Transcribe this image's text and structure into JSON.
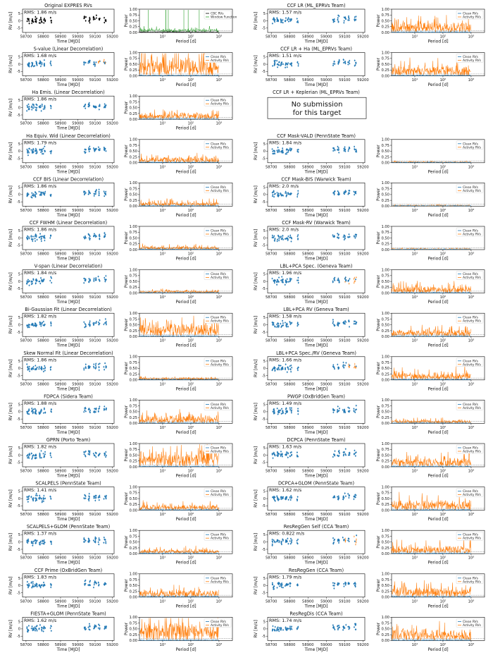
{
  "figure": {
    "rms_prefix": "RMS: ",
    "rms_unit": " m/s"
  },
  "rv_axis": {
    "ylabel": "RV [m/s]",
    "xlabel": "Time [MJD]",
    "xticks": [
      "58700",
      "58800",
      "58900",
      "59000",
      "59100",
      "59200"
    ],
    "yticks": [
      "5",
      "0",
      "-5"
    ],
    "xlim": [
      58680,
      59210
    ],
    "ylim": [
      -8,
      8
    ]
  },
  "power_axis": {
    "ylabel": "Power",
    "xlabel": "Period [d]",
    "xticks": [
      "10¹",
      "10²",
      "10³"
    ],
    "yticks": [
      "1.00",
      "0.75",
      "0.50",
      "0.25",
      "0.00"
    ],
    "xscale": "log",
    "ylim": [
      0,
      1
    ]
  },
  "legend": {
    "clean": "Clean RVs",
    "activity": "Activity RVs",
    "cbc": "CBC RVs",
    "window": "Window Function"
  },
  "colors": {
    "clean": "#1f77b4",
    "activity": "#ff7f0e",
    "cbc": "#000000",
    "window": "#2ca02c"
  },
  "no_submission": {
    "line1": "No submission",
    "line2": "for this target"
  },
  "chart_data": [
    {
      "panel": "L1",
      "type": "scatter",
      "title": "Original EXPRES RVs",
      "rms": "1.86",
      "style": "original",
      "amp": 0.2
    },
    {
      "panel": "L2",
      "type": "scatter",
      "title": "S-value (Linear Decorrelation)",
      "rms": "1.68",
      "style": "mixed",
      "amp": 0.75
    },
    {
      "panel": "L3",
      "type": "scatter",
      "title": "Ha Emis. (Linear Decorrelation)",
      "rms": "1.86",
      "style": "normal",
      "amp": 0.3
    },
    {
      "panel": "L4",
      "type": "scatter",
      "title": "Ha Equiv. Wid (Linear Decorrelation)",
      "rms": "1.79",
      "style": "normal",
      "amp": 0.25
    },
    {
      "panel": "L5",
      "type": "scatter",
      "title": "CCF BIS (Linear Decorrelation)",
      "rms": "1.86",
      "style": "normal",
      "amp": 0.2
    },
    {
      "panel": "L6",
      "type": "scatter",
      "title": "CCF FWHM (Linear Decorrelation)",
      "rms": "1.86",
      "style": "normal",
      "amp": 0.15
    },
    {
      "panel": "L7",
      "type": "scatter",
      "title": "V-span (Linear Decorrelation)",
      "rms": "1.84",
      "style": "normal",
      "amp": 0.12
    },
    {
      "panel": "L8",
      "type": "scatter",
      "title": "Bi-Gaussian Fit (Linear Decorrelation)",
      "rms": "1.82",
      "style": "normal",
      "amp": 0.6
    },
    {
      "panel": "L9",
      "type": "scatter",
      "title": "Skew Normal Fit (Linear Decorrelation)",
      "rms": "1.86",
      "style": "normal",
      "amp": 0.1
    },
    {
      "panel": "L10",
      "type": "scatter",
      "title": "FDPCA (Sidera Team)",
      "rms": "1.88",
      "style": "normal",
      "amp": 0.35
    },
    {
      "panel": "L11",
      "type": "scatter",
      "title": "GPRN (Porto Team)",
      "rms": "1.82",
      "style": "normal",
      "amp": 0.7
    },
    {
      "panel": "L12",
      "type": "scatter",
      "title": "SCALPELS (PennState Team)",
      "rms": "1.41",
      "style": "normal",
      "amp": 0.25
    },
    {
      "panel": "L13",
      "type": "scatter",
      "title": "SCALPELS+GLOM (PennState Team)",
      "rms": "1.37",
      "style": "normal",
      "amp": 0.2
    },
    {
      "panel": "L14",
      "type": "scatter",
      "title": "CCF Prime (OxBridGen Team)",
      "rms": "1.83",
      "style": "normal",
      "amp": 0.3
    },
    {
      "panel": "L15",
      "type": "scatter",
      "title": "FIESTA+GLOM (PennState Team)",
      "rms": "1.62",
      "style": "normal",
      "amp": 0.85
    },
    {
      "panel": "R1",
      "type": "scatter",
      "title": "CCF LR (ML_EPRVs Team)",
      "rms": "1.57",
      "style": "normal",
      "amp": 0.45
    },
    {
      "panel": "R2",
      "type": "scatter",
      "title": "CCF LR + Ha (ML_EPRVs Team)",
      "rms": "1.51",
      "style": "normal",
      "amp": 0.45
    },
    {
      "panel": "R3",
      "type": "none",
      "title": "CCF LR + Keplerian (ML_EPRVs Team)",
      "rms": "",
      "style": "none",
      "amp": 0
    },
    {
      "panel": "R4",
      "type": "scatter",
      "title": "CCF Mask-VALD (PennState Team)",
      "rms": "1.84",
      "style": "normal",
      "amp": 0.05
    },
    {
      "panel": "R5",
      "type": "scatter",
      "title": "CCF Mask-BIS (Warwick Team)",
      "rms": "2.0",
      "style": "normal",
      "amp": 0.05
    },
    {
      "panel": "R6",
      "type": "scatter",
      "title": "CCF Mask-RV (Warwick Team)",
      "rms": "2.0",
      "style": "normal",
      "amp": 0.05
    },
    {
      "panel": "R7",
      "type": "scatter",
      "title": "LBL+PCA Spec. (Geneva Team)",
      "rms": "1.96",
      "style": "mixed",
      "amp": 0.3
    },
    {
      "panel": "R8",
      "type": "scatter",
      "title": "LBL+PCA RV (Geneva Team)",
      "rms": "1.58",
      "style": "normal",
      "amp": 0.3
    },
    {
      "panel": "R9",
      "type": "scatter",
      "title": "LBL+PCA Spec./RV (Geneva Team)",
      "rms": "1.66",
      "style": "mixed",
      "amp": 0.35
    },
    {
      "panel": "R10",
      "type": "scatter",
      "title": "PWGP (OxBridGen Team)",
      "rms": "1.49",
      "style": "normal",
      "amp": 0.15
    },
    {
      "panel": "R11",
      "type": "scatter",
      "title": "DCPCA (PennState Team)",
      "rms": "1.63",
      "style": "normal",
      "amp": 0.4
    },
    {
      "panel": "R12",
      "type": "scatter",
      "title": "DCPCA+GLOM (PennState Team)",
      "rms": "1.62",
      "style": "normal",
      "amp": 0.45
    },
    {
      "panel": "R13",
      "type": "scatter",
      "title": "ResRegGen Self (CCA Team)",
      "rms": "0.822",
      "style": "mixed",
      "amp": 0.35
    },
    {
      "panel": "R14",
      "type": "scatter",
      "title": "ResRegGen (CCA Team)",
      "rms": "1.79",
      "style": "normal",
      "amp": 0.45
    },
    {
      "panel": "R15",
      "type": "scatter",
      "title": "ResRegDis (CCA Team)",
      "rms": "1.74",
      "style": "normal",
      "amp": 0.5
    }
  ]
}
